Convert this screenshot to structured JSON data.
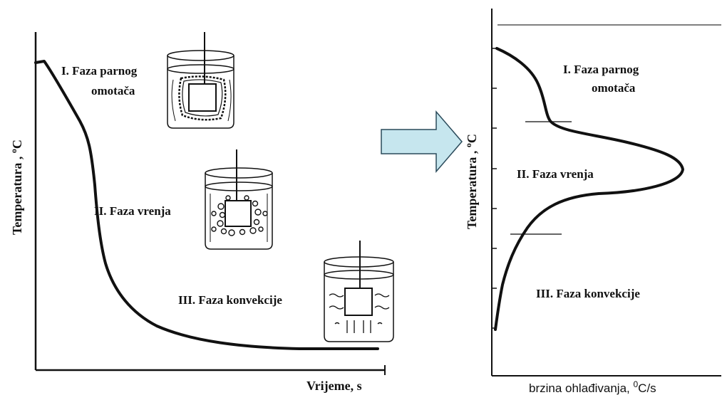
{
  "left_diagram": {
    "y_axis_label": "Temperatura , ",
    "y_axis_unit_sup": "o",
    "y_axis_unit": "C",
    "x_axis_label": "Vrijeme, s",
    "phases": [
      {
        "line1": "I. Faza parnog",
        "line2": "omotača"
      },
      {
        "line1": "II. Faza vrenja",
        "line2": ""
      },
      {
        "line1": "III. Faza konvekcije",
        "line2": ""
      }
    ]
  },
  "right_diagram": {
    "y_axis_label": "Temperatura , ",
    "y_axis_unit_sup": "o",
    "y_axis_unit": "C",
    "x_axis_label_prefix": "brzina ohlađivanja, ",
    "x_axis_label_sup": "0",
    "x_axis_label_suffix": "C/s",
    "phases": [
      {
        "line1": "I. Faza parnog",
        "line2": "omotača"
      },
      {
        "line1": "II. Faza vrenja",
        "line2": ""
      },
      {
        "line1": "III. Faza konvekcije",
        "line2": ""
      }
    ]
  },
  "colors": {
    "arrow_fill": "#c6e6ee",
    "arrow_stroke": "#2a4a5a",
    "ink": "#111111"
  }
}
